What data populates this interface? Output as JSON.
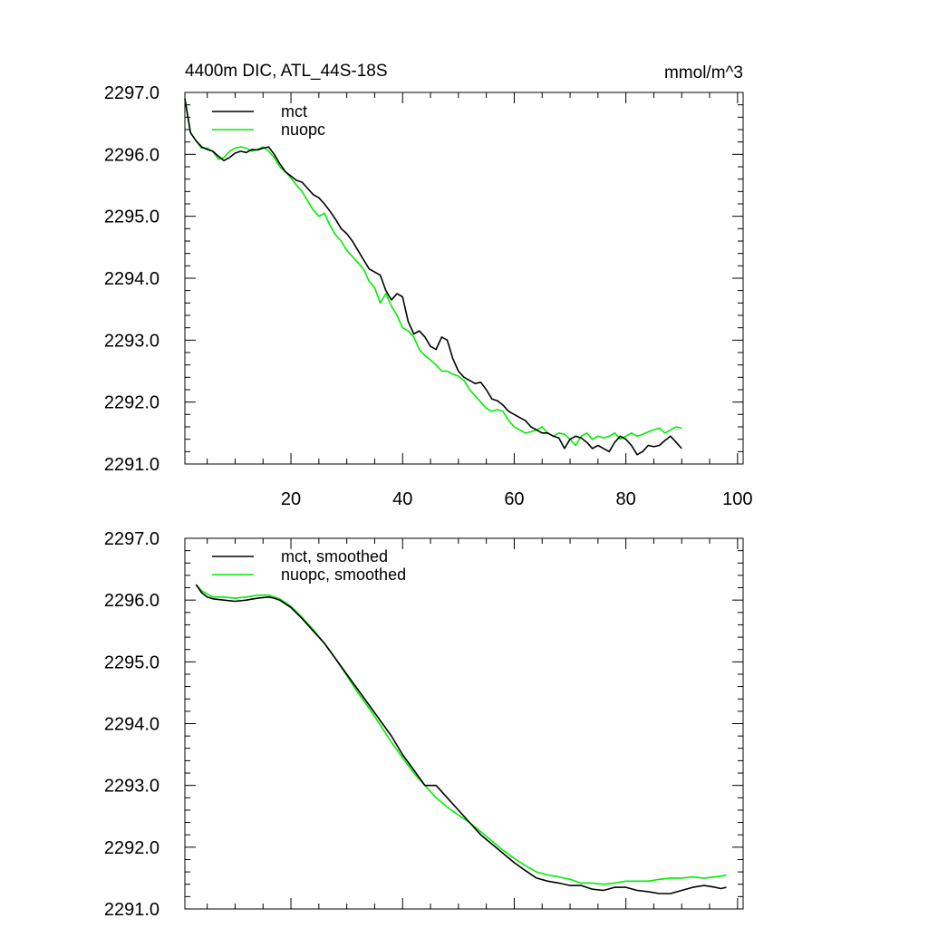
{
  "figure": {
    "title_left": "4400m DIC, ATL_44S-18S",
    "title_right": "mmol/m^3"
  },
  "chart_data": [
    {
      "type": "line",
      "xlim": [
        1,
        101
      ],
      "ylim": [
        2291.0,
        2297.0
      ],
      "x_ticks": [
        20,
        40,
        60,
        80,
        100
      ],
      "x_tick_labels": [
        "20",
        "40",
        "60",
        "80",
        "100"
      ],
      "y_ticks": [
        2291.0,
        2292.0,
        2293.0,
        2294.0,
        2295.0,
        2296.0,
        2297.0
      ],
      "y_tick_labels": [
        "2291.0",
        "2292.0",
        "2293.0",
        "2294.0",
        "2295.0",
        "2296.0",
        "2297.0"
      ],
      "legend_position": "top-left",
      "series": [
        {
          "name": "mct",
          "color": "#000000",
          "x_start": 1,
          "values": [
            2296.9,
            2296.35,
            2296.22,
            2296.12,
            2296.08,
            2296.05,
            2295.97,
            2295.9,
            2295.95,
            2296.02,
            2296.05,
            2296.03,
            2296.08,
            2296.07,
            2296.1,
            2296.12,
            2296.0,
            2295.85,
            2295.72,
            2295.65,
            2295.58,
            2295.55,
            2295.45,
            2295.35,
            2295.3,
            2295.2,
            2295.08,
            2294.95,
            2294.8,
            2294.72,
            2294.6,
            2294.45,
            2294.3,
            2294.15,
            2294.1,
            2294.05,
            2293.8,
            2293.65,
            2293.75,
            2293.7,
            2293.3,
            2293.1,
            2293.15,
            2293.05,
            2292.9,
            2292.85,
            2293.05,
            2293.0,
            2292.7,
            2292.5,
            2292.4,
            2292.35,
            2292.3,
            2292.32,
            2292.2,
            2292.05,
            2292.02,
            2291.95,
            2291.85,
            2291.8,
            2291.75,
            2291.7,
            2291.6,
            2291.55,
            2291.5,
            2291.5,
            2291.45,
            2291.42,
            2291.25,
            2291.4,
            2291.45,
            2291.42,
            2291.35,
            2291.25,
            2291.3,
            2291.25,
            2291.2,
            2291.35,
            2291.45,
            2291.4,
            2291.3,
            2291.15,
            2291.2,
            2291.3,
            2291.28,
            2291.3,
            2291.38,
            2291.45,
            2291.35,
            2291.25
          ]
        },
        {
          "name": "nuopc",
          "color": "#00ee00",
          "x_start": 1,
          "values": [
            2296.9,
            2296.35,
            2296.22,
            2296.1,
            2296.1,
            2296.05,
            2295.92,
            2295.95,
            2296.05,
            2296.1,
            2296.12,
            2296.1,
            2296.05,
            2296.08,
            2296.12,
            2296.05,
            2295.95,
            2295.8,
            2295.72,
            2295.62,
            2295.5,
            2295.4,
            2295.25,
            2295.1,
            2295.0,
            2295.05,
            2294.85,
            2294.7,
            2294.6,
            2294.45,
            2294.35,
            2294.25,
            2294.15,
            2293.95,
            2293.85,
            2293.6,
            2293.75,
            2293.55,
            2293.4,
            2293.2,
            2293.15,
            2293.05,
            2292.85,
            2292.75,
            2292.68,
            2292.6,
            2292.5,
            2292.5,
            2292.45,
            2292.42,
            2292.35,
            2292.2,
            2292.1,
            2292.0,
            2291.9,
            2291.85,
            2291.88,
            2291.85,
            2291.7,
            2291.6,
            2291.55,
            2291.5,
            2291.52,
            2291.55,
            2291.6,
            2291.5,
            2291.45,
            2291.5,
            2291.48,
            2291.4,
            2291.3,
            2291.45,
            2291.5,
            2291.4,
            2291.45,
            2291.42,
            2291.45,
            2291.5,
            2291.4,
            2291.45,
            2291.5,
            2291.45,
            2291.48,
            2291.52,
            2291.55,
            2291.58,
            2291.5,
            2291.55,
            2291.6,
            2291.58
          ]
        }
      ]
    },
    {
      "type": "line",
      "xlim": [
        1,
        101
      ],
      "ylim": [
        2291.0,
        2297.0
      ],
      "x_ticks": [
        20,
        40,
        60,
        80,
        100
      ],
      "y_ticks": [
        2291.0,
        2292.0,
        2293.0,
        2294.0,
        2295.0,
        2296.0,
        2297.0
      ],
      "y_tick_labels": [
        "2291.0",
        "2292.0",
        "2293.0",
        "2294.0",
        "2295.0",
        "2296.0",
        "2297.0"
      ],
      "legend_position": "top-left",
      "series": [
        {
          "name": "mct, smoothed",
          "color": "#000000",
          "x": [
            3,
            4,
            5,
            6,
            8,
            10,
            12,
            14,
            16,
            17,
            18,
            20,
            22,
            24,
            26,
            28,
            30,
            32,
            34,
            36,
            38,
            40,
            42,
            44,
            46,
            48,
            50,
            52,
            54,
            56,
            58,
            60,
            62,
            64,
            66,
            68,
            70,
            72,
            74,
            76,
            78,
            80,
            82,
            84,
            86,
            88,
            90,
            92,
            94,
            96,
            97,
            98
          ],
          "values": [
            2296.25,
            2296.12,
            2296.05,
            2296.02,
            2296.0,
            2295.98,
            2296.0,
            2296.03,
            2296.05,
            2296.03,
            2296.0,
            2295.88,
            2295.7,
            2295.5,
            2295.3,
            2295.05,
            2294.8,
            2294.55,
            2294.3,
            2294.05,
            2293.8,
            2293.5,
            2293.25,
            2293.0,
            2293.0,
            2292.8,
            2292.6,
            2292.4,
            2292.2,
            2292.05,
            2291.9,
            2291.75,
            2291.62,
            2291.5,
            2291.45,
            2291.42,
            2291.38,
            2291.38,
            2291.32,
            2291.3,
            2291.35,
            2291.35,
            2291.3,
            2291.28,
            2291.25,
            2291.25,
            2291.3,
            2291.35,
            2291.38,
            2291.35,
            2291.33,
            2291.35
          ]
        },
        {
          "name": "nuopc, smoothed",
          "color": "#00ee00",
          "x": [
            3,
            4,
            5,
            6,
            8,
            10,
            12,
            14,
            16,
            17,
            18,
            20,
            22,
            24,
            26,
            28,
            30,
            32,
            34,
            36,
            38,
            40,
            42,
            44,
            46,
            48,
            50,
            52,
            54,
            56,
            58,
            60,
            62,
            64,
            66,
            68,
            70,
            72,
            74,
            76,
            78,
            80,
            82,
            84,
            86,
            88,
            90,
            92,
            94,
            96,
            97,
            98
          ],
          "values": [
            2296.25,
            2296.15,
            2296.1,
            2296.05,
            2296.05,
            2296.03,
            2296.05,
            2296.08,
            2296.08,
            2296.05,
            2296.02,
            2295.9,
            2295.72,
            2295.52,
            2295.3,
            2295.05,
            2294.78,
            2294.5,
            2294.25,
            2293.98,
            2293.7,
            2293.45,
            2293.2,
            2293.0,
            2292.8,
            2292.65,
            2292.52,
            2292.4,
            2292.25,
            2292.1,
            2291.95,
            2291.82,
            2291.7,
            2291.6,
            2291.55,
            2291.52,
            2291.48,
            2291.42,
            2291.42,
            2291.4,
            2291.42,
            2291.45,
            2291.45,
            2291.45,
            2291.48,
            2291.5,
            2291.5,
            2291.52,
            2291.5,
            2291.52,
            2291.53,
            2291.55
          ]
        }
      ]
    }
  ]
}
